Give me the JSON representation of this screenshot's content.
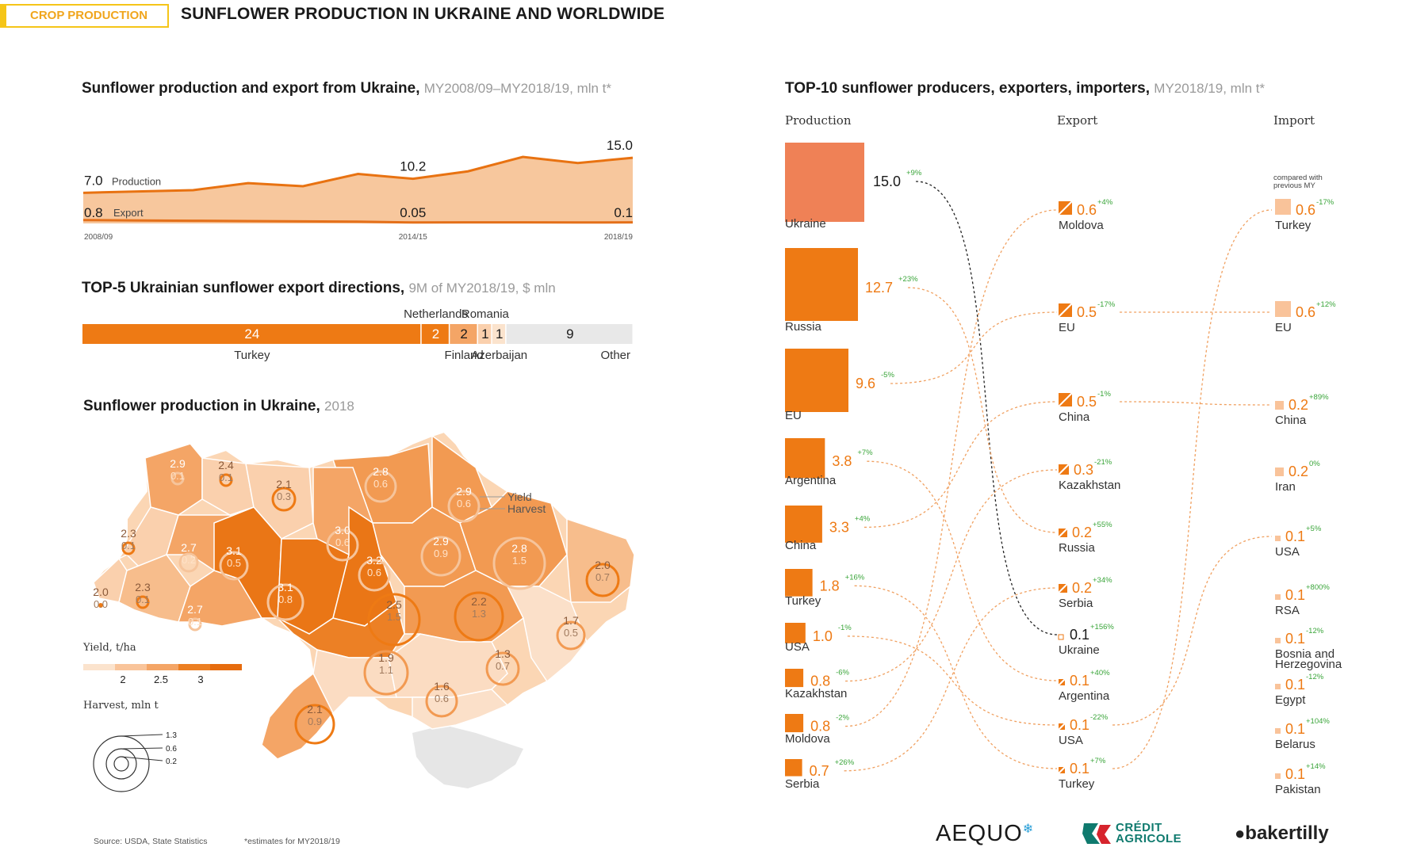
{
  "header": {
    "tag": "CROP PRODUCTION",
    "title": "SUNFLOWER PRODUCTION IN UKRAINE AND WORLDWIDE"
  },
  "colors": {
    "accent": "#f0a51c",
    "orange": "#ee7a14",
    "dark_orange": "#e87211",
    "salmon": "#ef8156",
    "light": "#f9d2ae",
    "grey": "#e8e8e8",
    "green": "#3aa53a"
  },
  "chart1": {
    "title": "Sunflower production and export from Ukraine,",
    "subtitle": "MY2008/09–MY2018/19, mln t*"
  },
  "chart2": {
    "title": "TOP-5 Ukrainian sunflower export directions,",
    "subtitle": "9M of MY2018/19, $ mln"
  },
  "chart3": {
    "title": "Sunflower production in Ukraine,",
    "subtitle": "2018",
    "yield_title": "Yield, t/ha",
    "harvest_title": "Harvest, mln t",
    "annot_yield": "Yield",
    "annot_harvest": "Harvest"
  },
  "chart4": {
    "title": "TOP-10 sunflower producers, exporters, importers,",
    "subtitle": "MY2018/19, mln t*",
    "col_production": "Production",
    "col_export": "Export",
    "col_import": "Import",
    "compared_note": "compared with previous MY"
  },
  "chart_data": [
    {
      "type": "area",
      "title": "Sunflower production and export from Ukraine, MY2008/09–MY2018/19, mln t*",
      "x": [
        "2008/09",
        "2009/10",
        "2010/11",
        "2011/12",
        "2012/13",
        "2013/14",
        "2014/15",
        "2015/16",
        "2016/17",
        "2017/18",
        "2018/19"
      ],
      "tick_labels": [
        "2008/09",
        "2014/15",
        "2018/19"
      ],
      "series": [
        {
          "name": "Production",
          "values": [
            7.0,
            7.3,
            7.6,
            9.2,
            8.5,
            11.3,
            10.2,
            11.9,
            15.2,
            13.8,
            15.0
          ],
          "labels": {
            "0": "7.0",
            "6": "10.2",
            "10": "15.0"
          }
        },
        {
          "name": "Export",
          "values": [
            0.8,
            0.7,
            0.6,
            0.5,
            0.4,
            0.3,
            0.05,
            0.1,
            0.1,
            0.05,
            0.1
          ],
          "labels": {
            "0": "0.8",
            "6": "0.05",
            "10": "0.1"
          }
        }
      ],
      "ylim": [
        0,
        16
      ]
    },
    {
      "type": "bar",
      "title": "TOP-5 Ukrainian sunflower export directions, 9M of MY2018/19, $ mln",
      "categories": [
        "Turkey",
        "Netherlands",
        "Finland",
        "Romania",
        "Azerbaijan",
        "Other"
      ],
      "values": [
        24,
        2,
        2,
        1,
        1,
        9
      ],
      "value_labels": [
        "24",
        "2",
        "2",
        "1",
        "1",
        "9"
      ]
    },
    {
      "type": "map",
      "title": "Sunflower production in Ukraine, 2018",
      "regions": [
        {
          "yield": "2.9",
          "harvest": "0.1"
        },
        {
          "yield": "2.4",
          "harvest": "0.1"
        },
        {
          "yield": "2.1",
          "harvest": "0.3"
        },
        {
          "yield": "2.8",
          "harvest": "0.6"
        },
        {
          "yield": "2.9",
          "harvest": "0.6"
        },
        {
          "yield": "2.3",
          "harvest": "0.1"
        },
        {
          "yield": "2.7",
          "harvest": "0.2"
        },
        {
          "yield": "3.1",
          "harvest": "0.5"
        },
        {
          "yield": "3.0",
          "harvest": "0.6"
        },
        {
          "yield": "3.2",
          "harvest": "0.6"
        },
        {
          "yield": "2.9",
          "harvest": "0.9"
        },
        {
          "yield": "2.8",
          "harvest": "1.5"
        },
        {
          "yield": "2.0",
          "harvest": "0.7"
        },
        {
          "yield": "2.0",
          "harvest": "0.0"
        },
        {
          "yield": "2.3",
          "harvest": "0.1"
        },
        {
          "yield": "2.7",
          "harvest": "0.1"
        },
        {
          "yield": "3.1",
          "harvest": "0.8"
        },
        {
          "yield": "2.5",
          "harvest": "1.5"
        },
        {
          "yield": "2.2",
          "harvest": "1.3"
        },
        {
          "yield": "1.7",
          "harvest": "0.5"
        },
        {
          "yield": "1.9",
          "harvest": "1.1"
        },
        {
          "yield": "1.3",
          "harvest": "0.7"
        },
        {
          "yield": "1.6",
          "harvest": "0.6"
        },
        {
          "yield": "2.1",
          "harvest": "0.9"
        }
      ],
      "yield_legend": [
        "2",
        "2.5",
        "3"
      ],
      "harvest_legend": [
        "1.3",
        "0.6",
        "0.2"
      ]
    },
    {
      "type": "bar",
      "title": "TOP-10 sunflower producers, exporters, importers, MY2018/19, mln t*",
      "production": [
        {
          "country": "Ukraine",
          "value": 15.0,
          "label": "15.0",
          "change": "+9%"
        },
        {
          "country": "Russia",
          "value": 12.7,
          "label": "12.7",
          "change": "+23%"
        },
        {
          "country": "EU",
          "value": 9.6,
          "label": "9.6",
          "change": "-5%"
        },
        {
          "country": "Argentina",
          "value": 3.8,
          "label": "3.8",
          "change": "+7%"
        },
        {
          "country": "China",
          "value": 3.3,
          "label": "3.3",
          "change": "+4%"
        },
        {
          "country": "Turkey",
          "value": 1.8,
          "label": "1.8",
          "change": "+16%"
        },
        {
          "country": "USA",
          "value": 1.0,
          "label": "1.0",
          "change": "-1%"
        },
        {
          "country": "Kazakhstan",
          "value": 0.8,
          "label": "0.8",
          "change": "-6%"
        },
        {
          "country": "Moldova",
          "value": 0.8,
          "label": "0.8",
          "change": "-2%"
        },
        {
          "country": "Serbia",
          "value": 0.7,
          "label": "0.7",
          "change": "+26%"
        }
      ],
      "export": [
        {
          "country": "Moldova",
          "value": 0.6,
          "label": "0.6",
          "change": "+4%"
        },
        {
          "country": "EU",
          "value": 0.5,
          "label": "0.5",
          "change": "-17%"
        },
        {
          "country": "China",
          "value": 0.5,
          "label": "0.5",
          "change": "-1%"
        },
        {
          "country": "Kazakhstan",
          "value": 0.3,
          "label": "0.3",
          "change": "-21%"
        },
        {
          "country": "Russia",
          "value": 0.2,
          "label": "0.2",
          "change": "+55%"
        },
        {
          "country": "Serbia",
          "value": 0.2,
          "label": "0.2",
          "change": "+34%"
        },
        {
          "country": "Ukraine",
          "value": 0.1,
          "label": "0.1",
          "change": "+156%"
        },
        {
          "country": "Argentina",
          "value": 0.1,
          "label": "0.1",
          "change": "+40%"
        },
        {
          "country": "USA",
          "value": 0.1,
          "label": "0.1",
          "change": "-22%"
        },
        {
          "country": "Turkey",
          "value": 0.1,
          "label": "0.1",
          "change": "+7%"
        }
      ],
      "import": [
        {
          "country": "Turkey",
          "value": 0.6,
          "label": "0.6",
          "change": "-17%"
        },
        {
          "country": "EU",
          "value": 0.6,
          "label": "0.6",
          "change": "+12%"
        },
        {
          "country": "China",
          "value": 0.2,
          "label": "0.2",
          "change": "+89%"
        },
        {
          "country": "Iran",
          "value": 0.2,
          "label": "0.2",
          "change": "0%"
        },
        {
          "country": "USA",
          "value": 0.1,
          "label": "0.1",
          "change": "+5%"
        },
        {
          "country": "RSA",
          "value": 0.1,
          "label": "0.1",
          "change": "+800%"
        },
        {
          "country": "Bosnia and Herzegovina",
          "value": 0.1,
          "label": "0.1",
          "change": "-12%"
        },
        {
          "country": "Egypt",
          "value": 0.1,
          "label": "0.1",
          "change": "-12%"
        },
        {
          "country": "Belarus",
          "value": 0.1,
          "label": "0.1",
          "change": "+104%"
        },
        {
          "country": "Pakistan",
          "value": 0.1,
          "label": "0.1",
          "change": "+14%"
        }
      ]
    }
  ],
  "footer": {
    "source": "Source: USDA, State Statistics",
    "note": "*estimates for MY2018/19",
    "logo_aequo": "AEQUO",
    "logo_ca": "CRÉDIT AGRICOLE",
    "logo_bt": "bakertilly"
  }
}
